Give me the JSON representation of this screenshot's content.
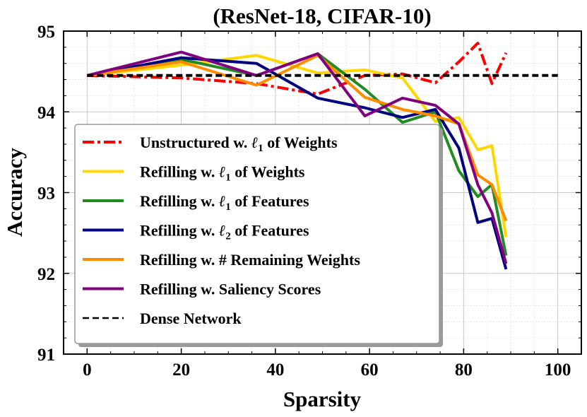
{
  "chart_data": {
    "type": "line",
    "title": "(ResNet-18, CIFAR-10)",
    "xlabel": "Sparsity",
    "ylabel": "Accuracy",
    "xlim": [
      -5,
      105
    ],
    "ylim": [
      91,
      95
    ],
    "xticks": [
      0,
      20,
      40,
      60,
      80,
      100
    ],
    "yticks": [
      91,
      92,
      93,
      94,
      95
    ],
    "grid": true,
    "legend_position": "lower-left",
    "series": [
      {
        "name": "Unstructured w. ℓ1 of Weights",
        "label_text": "Unstructured w. ",
        "label_norm": "1",
        "label_tail": " of Weights",
        "color": "#ff0000",
        "style": "dashdot",
        "x": [
          0,
          20,
          36,
          49,
          59,
          67,
          74,
          79,
          83,
          86,
          89
        ],
        "y": [
          94.45,
          94.42,
          94.35,
          94.22,
          94.45,
          94.47,
          94.36,
          94.62,
          94.85,
          94.35,
          94.73
        ]
      },
      {
        "name": "Refilling w. ℓ1 of Weights",
        "label_text": "Refilling w. ",
        "label_norm": "1",
        "label_tail": " of Weights",
        "color": "#ffd700",
        "style": "solid",
        "x": [
          0,
          20,
          36,
          49,
          59,
          67,
          74,
          79,
          83,
          86,
          89
        ],
        "y": [
          94.45,
          94.58,
          94.7,
          94.48,
          94.52,
          94.42,
          93.88,
          93.93,
          93.53,
          93.58,
          92.45
        ]
      },
      {
        "name": "Refilling w. ℓ1 of Features",
        "label_text": "Refilling w. ",
        "label_norm": "1",
        "label_tail": " of Features",
        "color": "#228b22",
        "style": "solid",
        "x": [
          0,
          20,
          36,
          49,
          59,
          67,
          74,
          79,
          83,
          86,
          89
        ],
        "y": [
          94.45,
          94.65,
          94.45,
          94.72,
          94.28,
          93.87,
          94.0,
          93.27,
          92.95,
          93.1,
          92.22
        ]
      },
      {
        "name": "Refilling w. ℓ2 of Features",
        "label_text": "Refilling w. ",
        "label_norm": "2",
        "label_tail": " of Features",
        "color": "#000080",
        "style": "solid",
        "x": [
          0,
          20,
          36,
          49,
          59,
          67,
          74,
          79,
          83,
          86,
          89
        ],
        "y": [
          94.45,
          94.67,
          94.6,
          94.17,
          94.05,
          93.93,
          94.03,
          93.55,
          92.63,
          92.68,
          92.05
        ]
      },
      {
        "name": "Refilling w. # Remaining Weights",
        "label_text": "Refilling w. # Remaining Weights",
        "label_norm": "",
        "label_tail": "",
        "color": "#ff8c00",
        "style": "solid",
        "x": [
          0,
          20,
          36,
          49,
          59,
          67,
          74,
          79,
          83,
          86,
          89
        ],
        "y": [
          94.45,
          94.62,
          94.33,
          94.7,
          94.18,
          94.03,
          93.95,
          93.85,
          93.22,
          93.1,
          92.65
        ]
      },
      {
        "name": "Refilling w. Saliency Scores",
        "label_text": "Refilling w. Saliency Scores",
        "label_norm": "",
        "label_tail": "",
        "color": "#800080",
        "style": "solid",
        "x": [
          0,
          20,
          36,
          49,
          59,
          67,
          74,
          79,
          83,
          86,
          89
        ],
        "y": [
          94.45,
          94.74,
          94.45,
          94.72,
          93.95,
          94.17,
          94.08,
          93.85,
          93.1,
          92.75,
          92.12
        ]
      },
      {
        "name": "Dense Network",
        "label_text": "Dense Network",
        "label_norm": "",
        "label_tail": "",
        "color": "#000000",
        "style": "dashed",
        "x": [
          0,
          100
        ],
        "y": [
          94.45,
          94.45
        ]
      }
    ]
  }
}
